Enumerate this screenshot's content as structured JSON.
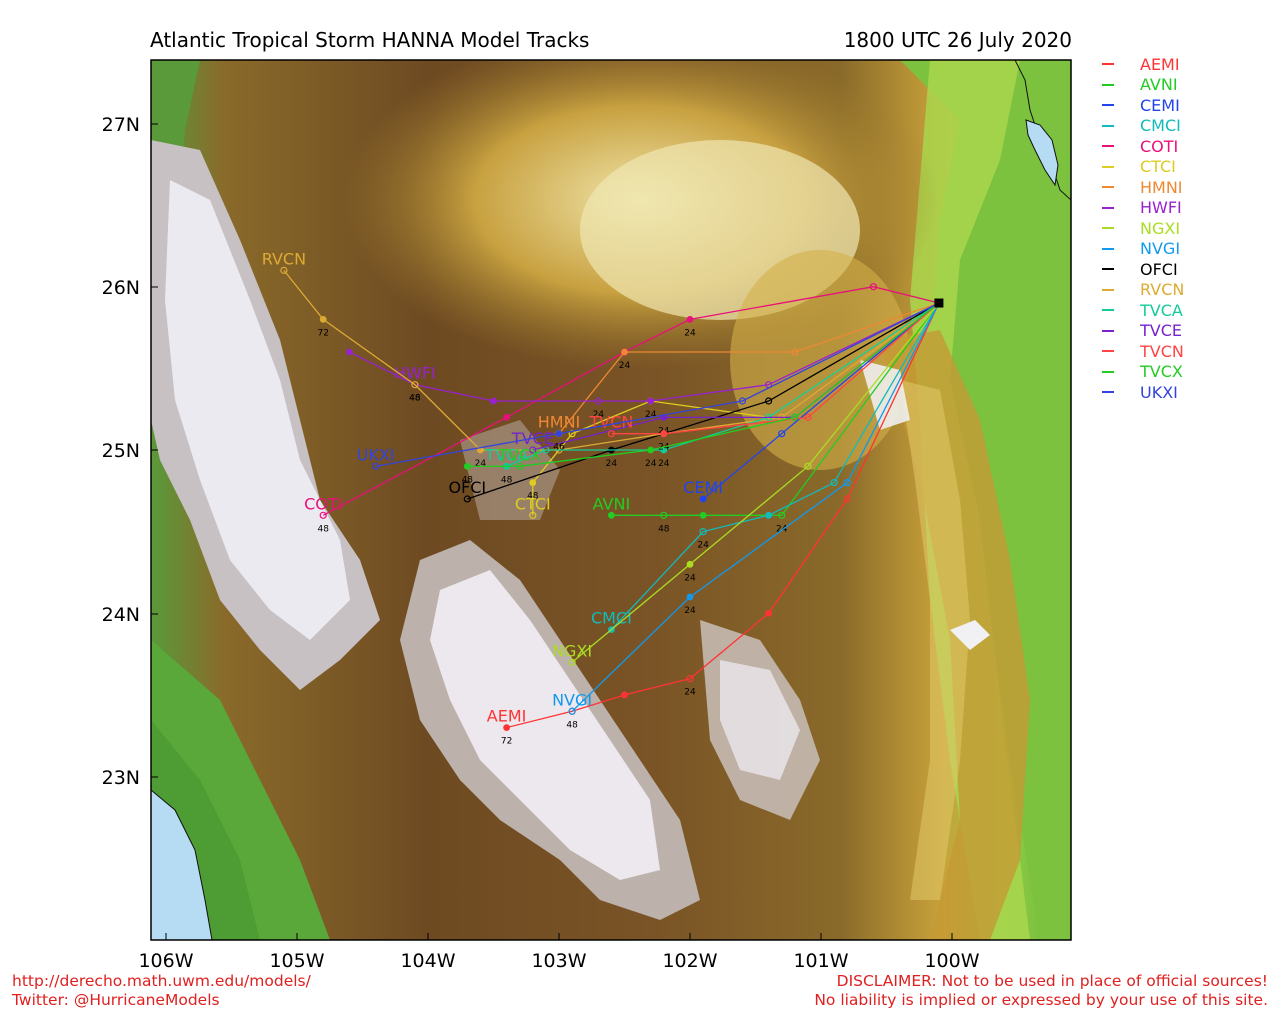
{
  "header": {
    "title": "Atlantic Tropical Storm HANNA Model Tracks",
    "datetime": "1800 UTC 26 July 2020"
  },
  "axes": {
    "lon_ticks": [
      "106W",
      "105W",
      "104W",
      "103W",
      "102W",
      "101W",
      "100W"
    ],
    "lat_ticks": [
      "27N",
      "26N",
      "24N",
      "23N",
      "25N"
    ]
  },
  "start": {
    "lon": -100.1,
    "lat": 25.9
  },
  "models": [
    {
      "name": "AEMI",
      "color": "#ff3333",
      "label_pos": [
        -103.4,
        23.3
      ],
      "points": [
        [
          -100.1,
          25.9
        ],
        [
          -100.8,
          24.7
        ],
        [
          -101.4,
          24.0
        ],
        [
          -102.0,
          23.6
        ],
        [
          -102.5,
          23.5
        ],
        [
          -102.9,
          23.4
        ],
        [
          -103.4,
          23.3
        ]
      ],
      "hours": [
        {
          "i": 3,
          "t": "24"
        },
        {
          "i": 5,
          "t": "48"
        },
        {
          "i": 6,
          "t": "72"
        }
      ]
    },
    {
      "name": "AVNI",
      "color": "#22cc22",
      "label_pos": [
        -102.6,
        24.6
      ],
      "points": [
        [
          -100.1,
          25.9
        ],
        [
          -101.3,
          24.6
        ],
        [
          -101.9,
          24.6
        ],
        [
          -102.2,
          24.6
        ],
        [
          -102.6,
          24.6
        ]
      ],
      "hours": [
        {
          "i": 1,
          "t": "24"
        },
        {
          "i": 3,
          "t": "48"
        }
      ]
    },
    {
      "name": "CEMI",
      "color": "#2244ee",
      "label_pos": [
        -101.9,
        24.7
      ],
      "points": [
        [
          -100.1,
          25.9
        ],
        [
          -101.3,
          25.1
        ],
        [
          -101.9,
          24.7
        ]
      ],
      "hours": []
    },
    {
      "name": "CMCI",
      "color": "#11bbbb",
      "label_pos": [
        -102.6,
        23.9
      ],
      "points": [
        [
          -100.1,
          25.9
        ],
        [
          -100.9,
          24.8
        ],
        [
          -101.4,
          24.6
        ],
        [
          -101.9,
          24.5
        ],
        [
          -102.6,
          23.9
        ]
      ],
      "hours": [
        {
          "i": 3,
          "t": "24"
        }
      ]
    },
    {
      "name": "COTI",
      "color": "#e8107a",
      "label_pos": [
        -104.8,
        24.6
      ],
      "points": [
        [
          -100.1,
          25.9
        ],
        [
          -100.6,
          26.0
        ],
        [
          -102.0,
          25.8
        ],
        [
          -102.5,
          25.6
        ],
        [
          -103.4,
          25.2
        ],
        [
          -104.8,
          24.6
        ]
      ],
      "hours": [
        {
          "i": 2,
          "t": "24"
        },
        {
          "i": 5,
          "t": "48"
        }
      ]
    },
    {
      "name": "CTCI",
      "color": "#ddcc22",
      "label_pos": [
        -103.2,
        24.6
      ],
      "points": [
        [
          -100.1,
          25.9
        ],
        [
          -101.4,
          25.2
        ],
        [
          -102.3,
          25.3
        ],
        [
          -102.9,
          25.1
        ],
        [
          -103.2,
          24.8
        ],
        [
          -103.2,
          24.6
        ]
      ],
      "hours": [
        {
          "i": 2,
          "t": "24"
        },
        {
          "i": 4,
          "t": "48"
        }
      ]
    },
    {
      "name": "HMNI",
      "color": "#ee8833",
      "label_pos": [
        -103.0,
        25.1
      ],
      "points": [
        [
          -100.1,
          25.9
        ],
        [
          -101.2,
          25.6
        ],
        [
          -102.5,
          25.6
        ],
        [
          -103.0,
          25.1
        ]
      ],
      "hours": [
        {
          "i": 2,
          "t": "24"
        }
      ]
    },
    {
      "name": "HWFI",
      "color": "#9922cc",
      "label_pos": [
        -104.1,
        25.4
      ],
      "points": [
        [
          -100.1,
          25.9
        ],
        [
          -101.4,
          25.4
        ],
        [
          -102.3,
          25.3
        ],
        [
          -102.7,
          25.3
        ],
        [
          -103.5,
          25.3
        ],
        [
          -104.1,
          25.4
        ],
        [
          -104.6,
          25.6
        ]
      ],
      "hours": [
        {
          "i": 3,
          "t": "24"
        },
        {
          "i": 5,
          "t": "48"
        }
      ]
    },
    {
      "name": "NGXI",
      "color": "#aadd22",
      "label_pos": [
        -102.9,
        23.7
      ],
      "points": [
        [
          -100.1,
          25.9
        ],
        [
          -101.1,
          24.9
        ],
        [
          -102.0,
          24.3
        ],
        [
          -102.9,
          23.7
        ]
      ],
      "hours": [
        {
          "i": 2,
          "t": "24"
        }
      ]
    },
    {
      "name": "NVGI",
      "color": "#1199ee",
      "label_pos": [
        -102.9,
        23.4
      ],
      "points": [
        [
          -100.1,
          25.9
        ],
        [
          -100.8,
          24.8
        ],
        [
          -102.0,
          24.1
        ],
        [
          -102.9,
          23.4
        ]
      ],
      "hours": [
        {
          "i": 2,
          "t": "24"
        }
      ]
    },
    {
      "name": "OFCI",
      "color": "#000000",
      "label_pos": [
        -103.7,
        24.7
      ],
      "points": [
        [
          -100.1,
          25.9
        ],
        [
          -101.4,
          25.3
        ],
        [
          -102.6,
          25.0
        ],
        [
          -103.7,
          24.7
        ]
      ],
      "hours": [
        {
          "i": 2,
          "t": "24"
        }
      ]
    },
    {
      "name": "RVCN",
      "color": "#ddaa33",
      "label_pos": [
        -105.1,
        26.1
      ],
      "points": [
        [
          -100.1,
          25.9
        ],
        [
          -101.3,
          25.2
        ],
        [
          -102.2,
          25.1
        ],
        [
          -103.0,
          25.0
        ],
        [
          -103.6,
          25.0
        ],
        [
          -104.1,
          25.4
        ],
        [
          -104.8,
          25.8
        ],
        [
          -105.1,
          26.1
        ]
      ],
      "hours": [
        {
          "i": 4,
          "t": "24"
        },
        {
          "i": 5,
          "t": "48"
        },
        {
          "i": 6,
          "t": "72"
        }
      ]
    },
    {
      "name": "TVCA",
      "color": "#11cc99",
      "label_pos": [
        -103.4,
        24.9
      ],
      "points": [
        [
          -100.1,
          25.9
        ],
        [
          -101.4,
          25.2
        ],
        [
          -102.2,
          25.0
        ],
        [
          -103.1,
          25.0
        ],
        [
          -103.4,
          24.9
        ]
      ],
      "hours": [
        {
          "i": 2,
          "t": "24"
        },
        {
          "i": 4,
          "t": "48"
        }
      ]
    },
    {
      "name": "TVCE",
      "color": "#7722cc",
      "label_pos": [
        -103.2,
        25.0
      ],
      "points": [
        [
          -100.1,
          25.9
        ],
        [
          -101.2,
          25.2
        ],
        [
          -102.2,
          25.2
        ],
        [
          -103.2,
          25.0
        ]
      ],
      "hours": [
        {
          "i": 2,
          "t": "24"
        }
      ]
    },
    {
      "name": "TVCN",
      "color": "#ff4444",
      "label_pos": [
        -102.6,
        25.1
      ],
      "points": [
        [
          -100.1,
          25.9
        ],
        [
          -101.1,
          25.2
        ],
        [
          -102.2,
          25.1
        ],
        [
          -102.6,
          25.1
        ]
      ],
      "hours": [
        {
          "i": 2,
          "t": "24"
        }
      ]
    },
    {
      "name": "TVCX",
      "color": "#22cc22",
      "label_pos": [
        -103.3,
        24.9
      ],
      "points": [
        [
          -100.1,
          25.9
        ],
        [
          -101.2,
          25.2
        ],
        [
          -102.3,
          25.0
        ],
        [
          -103.3,
          24.9
        ],
        [
          -103.7,
          24.9
        ]
      ],
      "hours": [
        {
          "i": 2,
          "t": "24"
        },
        {
          "i": 4,
          "t": "48"
        }
      ]
    },
    {
      "name": "UKXI",
      "color": "#3344dd",
      "label_pos": [
        -104.4,
        24.9
      ],
      "points": [
        [
          -100.1,
          25.9
        ],
        [
          -101.6,
          25.3
        ],
        [
          -103.0,
          25.1
        ],
        [
          -104.4,
          24.9
        ]
      ],
      "hours": [
        {
          "i": 2,
          "t": "46"
        }
      ]
    }
  ],
  "footer": {
    "left_line1": "http://derecho.math.uwm.edu/models/",
    "left_line2": "Twitter: @HurricaneModels",
    "right_line1": "DISCLAIMER: Not to be used in place of official sources!",
    "right_line2": "No liability is implied or expressed by your use of this site."
  }
}
